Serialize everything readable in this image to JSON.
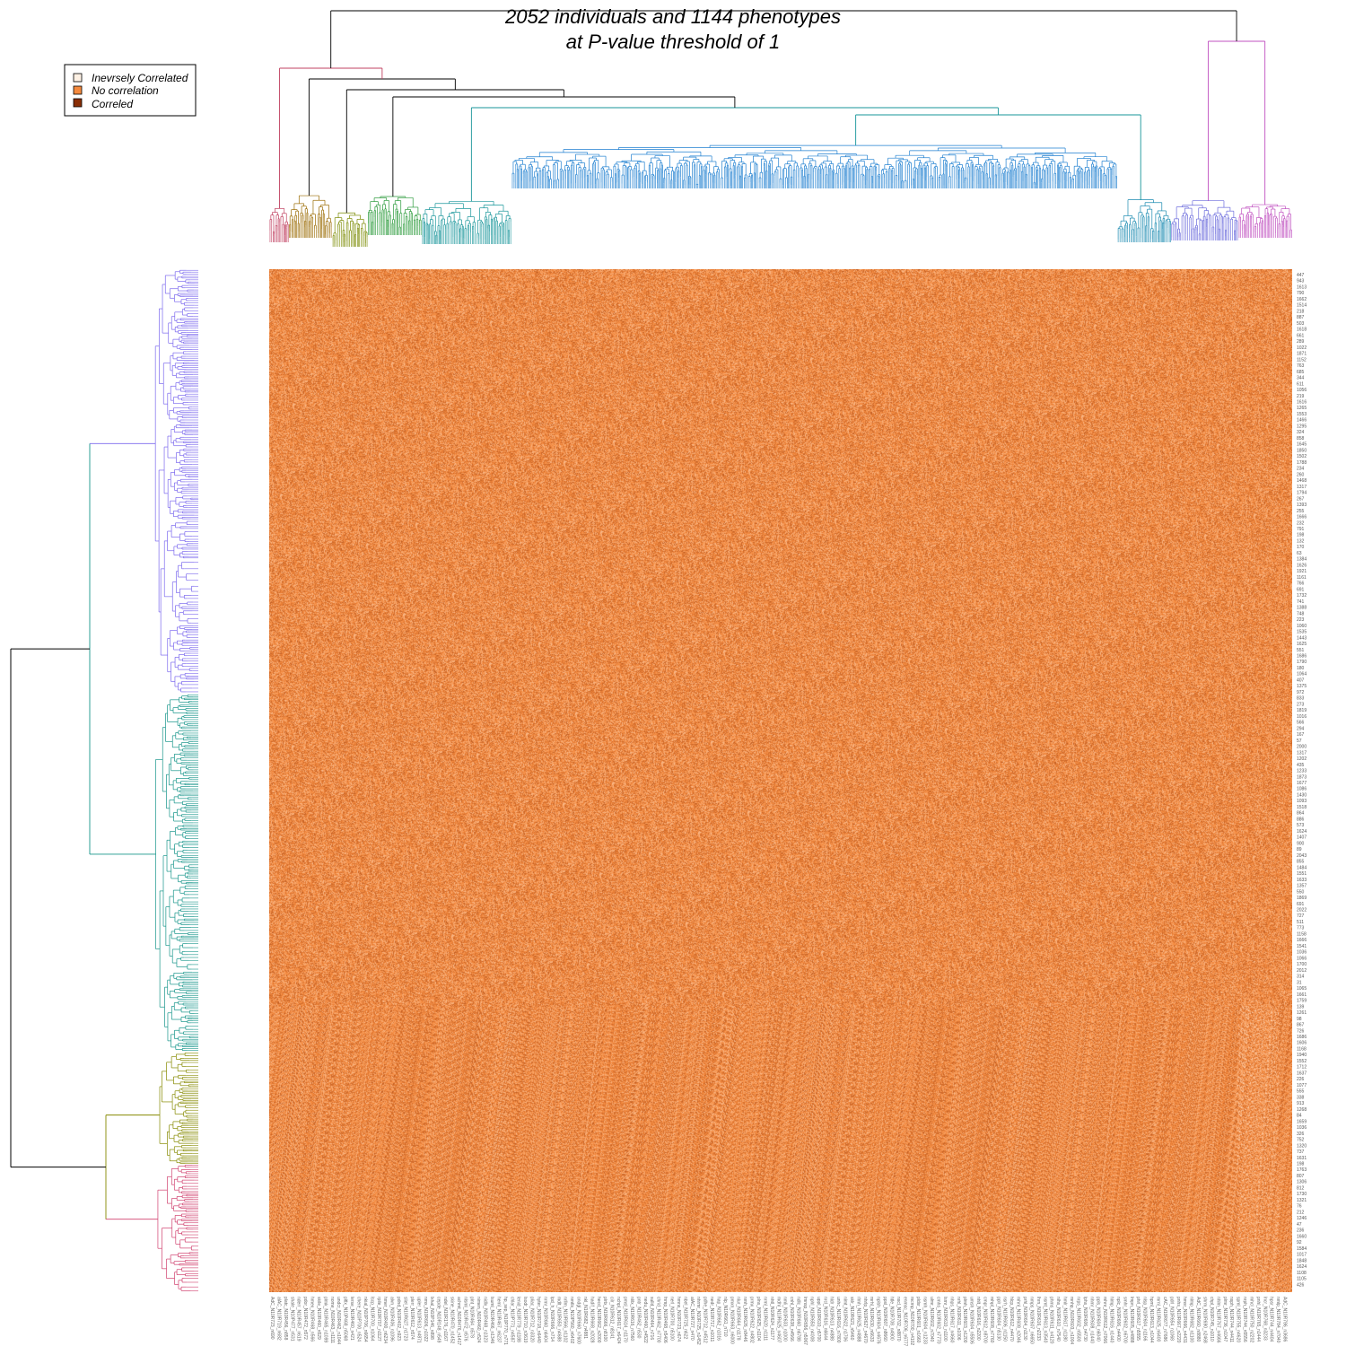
{
  "chart_data": {
    "type": "heatmap",
    "title": [
      "2052 individuals and 1144 phenotypes",
      "at P-value threshold of 1"
    ],
    "xlabel": "",
    "ylabel": "",
    "legend": {
      "placement": "top-left",
      "entries": [
        {
          "label": "Inevrsely Correlated",
          "color": "#fef1e4"
        },
        {
          "label": "No correlation",
          "color": "#f58a3e"
        },
        {
          "label": "Correled",
          "color": "#8a2e05"
        }
      ]
    },
    "rows": {
      "count": 2052,
      "tick_labels": [
        "447",
        "943",
        "1613",
        "790",
        "1662",
        "1514",
        "218",
        "887",
        "503",
        "1618",
        "661",
        "289",
        "1022",
        "1871",
        "1152",
        "763",
        "685",
        "344",
        "611",
        "1056",
        "219",
        "1616",
        "1265",
        "1553",
        "1466",
        "1295",
        "324",
        "858",
        "1645",
        "1850",
        "1502",
        "1788",
        "234",
        "260",
        "1468",
        "1317",
        "1794",
        "267",
        "1393",
        "255",
        "1666",
        "232",
        "791",
        "198",
        "132",
        "170",
        "63",
        "1384",
        "1626",
        "1921",
        "1161",
        "766",
        "691",
        "1732",
        "741",
        "1388",
        "748",
        "223",
        "1060",
        "1535",
        "1443",
        "1625",
        "551",
        "1686",
        "1790",
        "180",
        "1064",
        "407",
        "1375",
        "972",
        "833",
        "273",
        "1819",
        "1016",
        "566",
        "294",
        "167",
        "57",
        "2000",
        "1317",
        "1202",
        "435",
        "1233",
        "1873",
        "1677",
        "1086",
        "1430",
        "1093",
        "1518",
        "864",
        "886",
        "573",
        "1624",
        "1407",
        "900",
        "89",
        "2043",
        "855",
        "1484",
        "1551",
        "1633",
        "1357",
        "550",
        "1869",
        "691",
        "2022",
        "727",
        "511",
        "773",
        "1158",
        "1666",
        "1541",
        "1036",
        "1066",
        "1700",
        "2012",
        "314",
        "31",
        "1065",
        "1661",
        "1759",
        "139",
        "1261",
        "98",
        "867",
        "726",
        "1686",
        "1606",
        "1168",
        "1940",
        "1552",
        "1712",
        "1637",
        "226",
        "1077",
        "555",
        "338",
        "913",
        "1268",
        "84",
        "1659",
        "1036",
        "326",
        "752",
        "1320",
        "737",
        "1631",
        "198",
        "1763",
        "807",
        "1306",
        "812",
        "1730",
        "1321",
        "76",
        "212",
        "1246",
        "47",
        "236",
        "1660",
        "92",
        "1584",
        "1017",
        "1848",
        "1624",
        "1108",
        "1105",
        "426"
      ],
      "clusters": [
        {
          "color": "#7b68ee",
          "size": 830
        },
        {
          "color": "#16958a",
          "size": 700
        },
        {
          "color": "#868a00",
          "size": 220
        },
        {
          "color": "#d0406e",
          "size": 250
        }
      ]
    },
    "columns": {
      "count": 1144,
      "tick_labels": [
        "AdC_N10R723_n690",
        "alAC_N10R719_n682",
        "platc_N10R456_n858",
        "shale_N10P477_n531",
        "nderr_N10R457_n619",
        "pdor_N10R472_n572",
        "hmex_N10R468_n566",
        "skile_N10R460_n529",
        "plmk_N10R465_n1099",
        "nome_N10R463_n1111",
        "undcr_N10R462_n1044",
        "pltlx_N10P468_n5068",
        "lerse_N10R460_n421",
        "chere_N10P700_n524",
        "nkial_N10P706_n6654",
        "lscp_N10R700_n1064",
        "rpile_N10R707_n1127",
        "hmer_N10R400_n6234",
        "alvn_N10R406_n1096",
        "pdnd_N10R402_n923",
        "sliel_N10R627_n1723",
        "plerr_N10R612_n574",
        "upler_N10R613_n4871",
        "nmx_N10R606_n1022",
        "lxhal_N10P146_n898",
        "cepde_N10R148_n549",
        "ndel_N10R176_n1167",
        "skine_N10R470_n1452",
        "achmt_N10R476_n1417",
        "nlsml_N10R472_n576",
        "plnt_N10R464_n578",
        "nimen_N10R460_n524",
        "nidlx_N10R468_n1323",
        "lsuml_N10R466_n1346",
        "heml_N10R467_n6237",
        "hp_sep_N10P770_n771",
        "chlar_N10P771_n4587",
        "lenid_N10R779_n1188",
        "lsodr_N10R710_n3610",
        "pliac_N10R712_n3320",
        "hyter_N10R718_n6440",
        "nrmr_N10R660_n6404",
        "lpd_h_N10R666_n714",
        "mdlt_N10R650_n4688",
        "nrllm_N10R566_n1102",
        "nmtls_N10P560_n6402",
        "ondgl_N10R660_n7600",
        "nkl_N10R682_n4881",
        "hadif_N10R668_n2028",
        "hecd_N10R662_n2000",
        "plrtx_N10R666_n8100",
        "cilr_N10R612_n8141",
        "nchpl_N10R617_n6424",
        "pmsl_N10R614_n1170",
        "nlilx_N10R616_n7560",
        "pntr_N10R462_n530",
        "nedu_N10R460_n4522",
        "sulld_N10R464_n716",
        "chrid_N10R462_n7700",
        "fnmp_N10R468_n5406",
        "nerl_N10R700_n5100",
        "hmns_N10R723_n674",
        "nbel_N10R725_n622",
        "alAC_N10R727_n470",
        "nhrmr_N10R725_n1452",
        "pdhe_N10R712_n4512",
        "nedr_N10R717_n1011",
        "hap_N10R662_n1016",
        "nlp_N10R661_n710",
        "pmxn_N10R663_n6000",
        "nlur_N10R664_n1178",
        "nmh_N10R626_n8446",
        "prmx_N10R622_n4802",
        "plns_N10R625_n1104",
        "nrml_N10R620_n1111",
        "nhtl_N10R624_n1177",
        "mdhl_N10R625_n4607",
        "nmli_N10R633_n1000",
        "cnhl_N10R638_n4566",
        "ndlc_N10R660_n6788",
        "lmnsp_N10R656_n5067",
        "nphl_N10R650_n4008",
        "uppl_N10R610_n5700",
        "nrcl_N10R616_n6644",
        "hldr_N10R613_n4888",
        "unhc_N10R616_n7800",
        "nlmt_N10R622_n1706",
        "sklr_N10R621_n5460",
        "rlmh_N10R625_n4888",
        "nhrlp_N10R627_n4670",
        "mrhl_N10R630_n6633",
        "nplsh_N10R604_n4676",
        "ppsl_N10R607_n8660",
        "htle_N10R708_n4900",
        "nscl_N10R702_n8870",
        "enmsc_N10R706_n6777",
        "mcmp_N10R700_n4102",
        "pldsr_N10R601_n1660",
        "nsmh_N10R604_n1233",
        "ulmr_N10R602_n7040",
        "cmhs_N10R602_n7770",
        "lsmr_N10R610_n1100",
        "nhps_N10R617_n4660",
        "nrhl_N10R611_n1006",
        "plmh_N10R603_n1200",
        "umsh_N10R604_n5506",
        "nhlt_N10R616_n2200",
        "cmpr_N10R612_n8700",
        "mhpl_N10R608_n7760",
        "pplr_N10R604_n5130",
        "nsrh_N10R606_n1150",
        "hlcp_N10R612_n4470",
        "mhnl_N10R608_n2046",
        "prhl_N10R604_n1130",
        "nmps_N10R607_n6650",
        "lhrn_N10R616_n2233",
        "nsmt_N10R613_n3540",
        "phms_N10R611_n4120",
        "nlhs_N10R610_n7540",
        "hmlr_N10R617_n1180",
        "mnhp_N10R603_n1004",
        "nrps_N10R602_n5500",
        "lphs_N10R606_n4730",
        "nhmr_N10R608_n1440",
        "ppls_N10R604_n6040",
        "mhnr_N10R612_n7066",
        "hlmp_N10R616_n1440",
        "nplc_N10R606_n4400",
        "smhr_N10R602_n6700",
        "lmpn_N10R605_n4888",
        "phrl_N10R617_n5555",
        "nlsp_N10R604_n1166",
        "hpml_N10R613_n1044",
        "mrnl_N10R625_n6400",
        "cAC_N10R677_n7686",
        "pdrl_N10R654_n1068",
        "pnhs_N10R667_n2220",
        "hmsr_N10R666_n4431",
        "nlmp_N10R682_n1100",
        "AdC_N10R660_n8880",
        "shrm_N10R690_n2468",
        "chpl_N10R745_n1010",
        "nhlm_N10R767_n4666",
        "plmr_N10R736_n1047",
        "nsph_N10R744_n4411",
        "spml_N10R755_n4620",
        "nrph_N10R744_n5556",
        "mhcl_N10R750_n2202",
        "pnhl_N10R765_n1444",
        "lncr_N10R768_n3233",
        "hpsr_N10R744_n4404",
        "nmlp_N10R784_n7040",
        "AdC_N10R786_n3686"
      ]
    },
    "color_scale": {
      "low": "#fef1e4",
      "mid": "#f58a3e",
      "high": "#8a2e05"
    },
    "grid": false
  }
}
